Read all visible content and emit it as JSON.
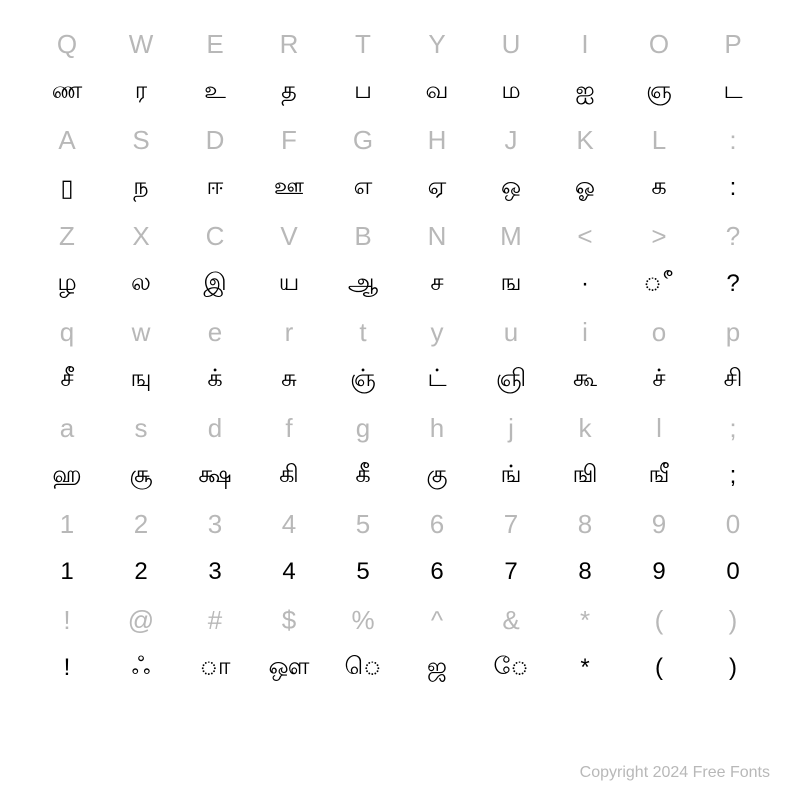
{
  "chart": {
    "type": "table",
    "background_color": "#ffffff",
    "key_color": "#b8b8b8",
    "glyph_color": "#000000",
    "key_fontsize": 26,
    "glyph_fontsize": 24,
    "columns": 10,
    "rows": [
      {
        "type": "key",
        "cells": [
          "Q",
          "W",
          "E",
          "R",
          "T",
          "Y",
          "U",
          "I",
          "O",
          "P"
        ]
      },
      {
        "type": "glyph",
        "cells": [
          "ண",
          "ர",
          "உ",
          "த",
          "ப",
          "வ",
          "ம",
          "ஐ",
          "ஞ",
          "ட"
        ]
      },
      {
        "type": "key",
        "cells": [
          "A",
          "S",
          "D",
          "F",
          "G",
          "H",
          "J",
          "K",
          "L",
          ":"
        ]
      },
      {
        "type": "glyph",
        "cells": [
          "▯",
          "ந",
          "ஈ",
          "ஊ",
          "எ",
          "ஏ",
          "ஒ",
          "ஓ",
          "க",
          ":"
        ]
      },
      {
        "type": "key",
        "cells": [
          "Z",
          "X",
          "C",
          "V",
          "B",
          "N",
          "M",
          "<",
          ">",
          "?"
        ]
      },
      {
        "type": "glyph",
        "cells": [
          "ழ",
          "ல",
          "இ",
          "ய",
          "ஆ",
          "ச",
          "ங",
          "·",
          "ீ",
          "?"
        ]
      },
      {
        "type": "key",
        "cells": [
          "q",
          "w",
          "e",
          "r",
          "t",
          "y",
          "u",
          "i",
          "o",
          "p"
        ]
      },
      {
        "type": "glyph",
        "cells": [
          "சீ",
          "ஙு",
          "க்",
          "சு",
          "ஞ்",
          "ட்",
          "ஞி",
          "கூ",
          "ச்",
          "சி"
        ]
      },
      {
        "type": "key",
        "cells": [
          "a",
          "s",
          "d",
          "f",
          "g",
          "h",
          "j",
          "k",
          "l",
          ";"
        ]
      },
      {
        "type": "glyph",
        "cells": [
          "ஹ",
          "சூ",
          "க்ஷ",
          "கி",
          "கீ",
          "கு",
          "ங்",
          "ஙி",
          "ஙீ",
          ";"
        ]
      },
      {
        "type": "key",
        "cells": [
          "1",
          "2",
          "3",
          "4",
          "5",
          "6",
          "7",
          "8",
          "9",
          "0"
        ]
      },
      {
        "type": "glyph",
        "cells": [
          "1",
          "2",
          "3",
          "4",
          "5",
          "6",
          "7",
          "8",
          "9",
          "0"
        ]
      },
      {
        "type": "key",
        "cells": [
          "!",
          "@",
          "#",
          "$",
          "%",
          "^",
          "&",
          "*",
          "(",
          ")"
        ]
      },
      {
        "type": "glyph",
        "cells": [
          "!",
          "ஃ",
          "ா",
          "ஔ",
          "ெ",
          "ஜ",
          "ே",
          "*",
          "(",
          ")"
        ]
      }
    ]
  },
  "footer": "Copyright 2024 Free Fonts"
}
